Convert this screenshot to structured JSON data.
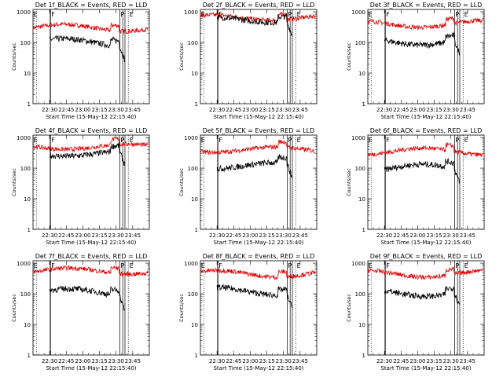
{
  "chart_data": {
    "type": "line",
    "title_suffix": "BLACK = Events, RED = LLD",
    "ylabel": "Counts/sec",
    "xlabel": "Start Time (15-May-12 22:15:40)",
    "y_tick_labels": [
      "1",
      "10",
      "100",
      "1000"
    ],
    "x_tick_labels": [
      "22:30",
      "22:45",
      "23:00",
      "23:15",
      "23:30",
      "23:45"
    ],
    "x_range_min": [
      0,
      105
    ],
    "y_range": [
      1,
      1200
    ],
    "marker_labels": [
      "E",
      "F",
      "P",
      "E"
    ],
    "series_names": [
      "Events",
      "LLD"
    ],
    "series_colors": {
      "events": "#000000",
      "lld": "#dd0000"
    },
    "events_start_min": 15,
    "events_end_min": 83,
    "panels": [
      {
        "title": "Det 1f",
        "red_base": 300,
        "black_base": 100,
        "red_var": 0.45,
        "black_var": 0.5
      },
      {
        "title": "Det 2f",
        "red_base": 650,
        "black_base": 550,
        "red_var": 0.35,
        "black_var": 0.35
      },
      {
        "title": "Det 3f",
        "red_base": 400,
        "black_base": 110,
        "red_var": 0.45,
        "black_var": 0.5
      },
      {
        "title": "Det 4f",
        "red_base": 500,
        "black_base": 300,
        "red_var": 0.35,
        "black_var": 0.35
      },
      {
        "title": "Det 5f",
        "red_base": 400,
        "black_base": 120,
        "red_var": 0.35,
        "black_var": 0.4
      },
      {
        "title": "Det 6f",
        "red_base": 350,
        "black_base": 100,
        "red_var": 0.45,
        "black_var": 0.5
      },
      {
        "title": "Det 7f",
        "red_base": 550,
        "black_base": 110,
        "red_var": 0.4,
        "black_var": 0.5
      },
      {
        "title": "Det 8f",
        "red_base": 450,
        "black_base": 120,
        "red_var": 0.45,
        "black_var": 0.5
      },
      {
        "title": "Det 9f",
        "red_base": 450,
        "black_base": 110,
        "red_var": 0.45,
        "black_var": 0.5
      }
    ]
  }
}
